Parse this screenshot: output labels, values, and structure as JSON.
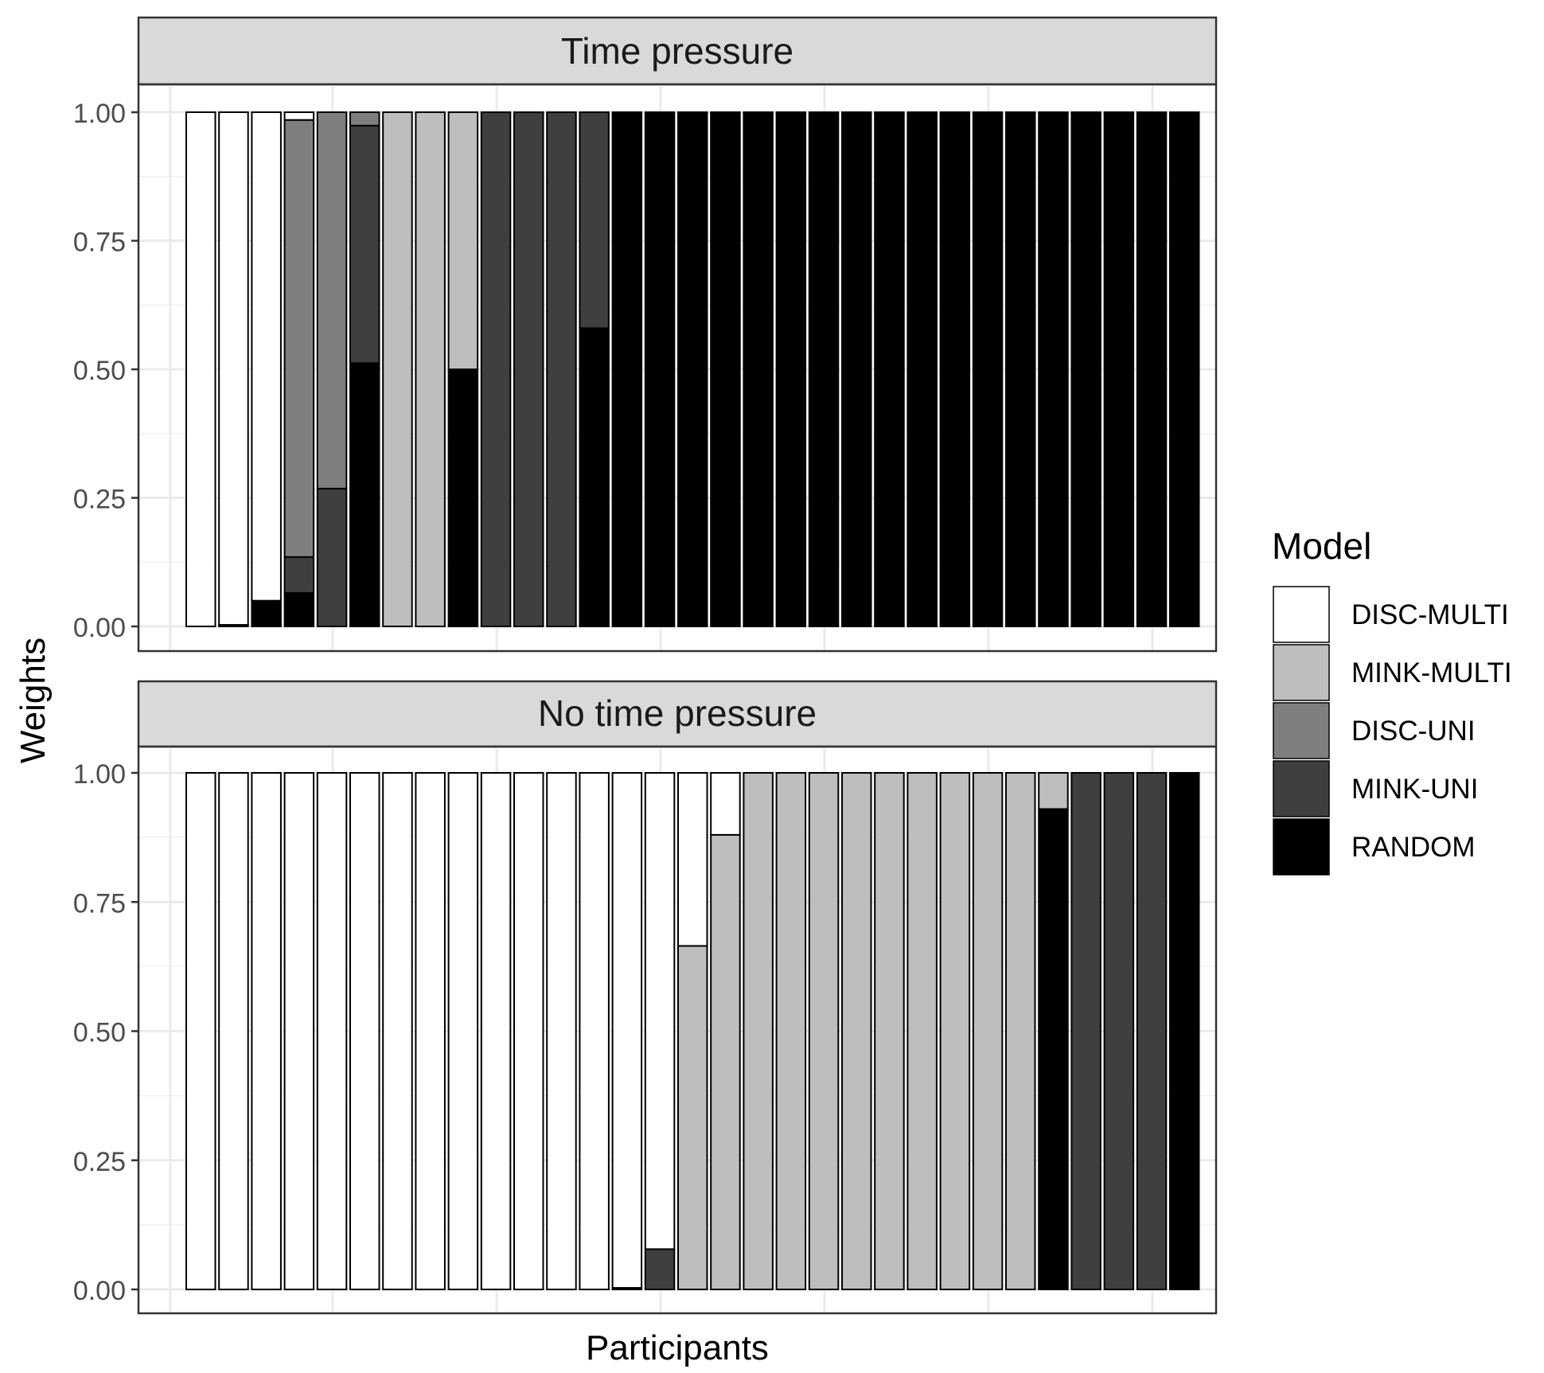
{
  "chart_data": {
    "type": "bar",
    "stacked": true,
    "xlabel": "Participants",
    "ylabel": "Weights",
    "ylim": [
      0,
      1
    ],
    "y_ticks": [
      "0.00",
      "0.25",
      "0.50",
      "0.75",
      "1.00"
    ],
    "grid": true,
    "legend": {
      "title": "Model",
      "placement": "right",
      "entries": [
        {
          "name": "DISC-MULTI",
          "color": "#ffffff"
        },
        {
          "name": "MINK-MULTI",
          "color": "#bebebe"
        },
        {
          "name": "DISC-UNI",
          "color": "#7f7f7f"
        },
        {
          "name": "MINK-UNI",
          "color": "#3f3f3f"
        },
        {
          "name": "RANDOM",
          "color": "#000000"
        }
      ]
    },
    "stack_order_bottom_to_top": [
      "RANDOM",
      "MINK-UNI",
      "DISC-UNI",
      "MINK-MULTI",
      "DISC-MULTI"
    ],
    "panels": [
      {
        "title": "Time pressure",
        "participants": [
          {
            "RANDOM": 0.0,
            "MINK-UNI": 0.0,
            "DISC-UNI": 0.0,
            "MINK-MULTI": 0.0,
            "DISC-MULTI": 1.0
          },
          {
            "RANDOM": 0.003,
            "MINK-UNI": 0.0,
            "DISC-UNI": 0.0,
            "MINK-MULTI": 0.0,
            "DISC-MULTI": 0.997
          },
          {
            "RANDOM": 0.05,
            "MINK-UNI": 0.0,
            "DISC-UNI": 0.0,
            "MINK-MULTI": 0.0,
            "DISC-MULTI": 0.95
          },
          {
            "RANDOM": 0.065,
            "MINK-UNI": 0.07,
            "DISC-UNI": 0.85,
            "MINK-MULTI": 0.0,
            "DISC-MULTI": 0.015
          },
          {
            "RANDOM": 0.0,
            "MINK-UNI": 0.268,
            "DISC-UNI": 0.732,
            "MINK-MULTI": 0.0,
            "DISC-MULTI": 0.0
          },
          {
            "RANDOM": 0.512,
            "MINK-UNI": 0.462,
            "DISC-UNI": 0.026,
            "MINK-MULTI": 0.0,
            "DISC-MULTI": 0.0
          },
          {
            "RANDOM": 0.0,
            "MINK-UNI": 0.0,
            "DISC-UNI": 0.0,
            "MINK-MULTI": 1.0,
            "DISC-MULTI": 0.0
          },
          {
            "RANDOM": 0.0,
            "MINK-UNI": 0.0,
            "DISC-UNI": 0.0,
            "MINK-MULTI": 1.0,
            "DISC-MULTI": 0.0
          },
          {
            "RANDOM": 0.5,
            "MINK-UNI": 0.0,
            "DISC-UNI": 0.0,
            "MINK-MULTI": 0.5,
            "DISC-MULTI": 0.0
          },
          {
            "RANDOM": 0.0,
            "MINK-UNI": 1.0,
            "DISC-UNI": 0.0,
            "MINK-MULTI": 0.0,
            "DISC-MULTI": 0.0
          },
          {
            "RANDOM": 0.0,
            "MINK-UNI": 1.0,
            "DISC-UNI": 0.0,
            "MINK-MULTI": 0.0,
            "DISC-MULTI": 0.0
          },
          {
            "RANDOM": 0.0,
            "MINK-UNI": 1.0,
            "DISC-UNI": 0.0,
            "MINK-MULTI": 0.0,
            "DISC-MULTI": 0.0
          },
          {
            "RANDOM": 0.58,
            "MINK-UNI": 0.42,
            "DISC-UNI": 0.0,
            "MINK-MULTI": 0.0,
            "DISC-MULTI": 0.0
          },
          {
            "RANDOM": 1.0,
            "MINK-UNI": 0.0,
            "DISC-UNI": 0.0,
            "MINK-MULTI": 0.0,
            "DISC-MULTI": 0.0
          },
          {
            "RANDOM": 1.0,
            "MINK-UNI": 0.0,
            "DISC-UNI": 0.0,
            "MINK-MULTI": 0.0,
            "DISC-MULTI": 0.0
          },
          {
            "RANDOM": 1.0,
            "MINK-UNI": 0.0,
            "DISC-UNI": 0.0,
            "MINK-MULTI": 0.0,
            "DISC-MULTI": 0.0
          },
          {
            "RANDOM": 1.0,
            "MINK-UNI": 0.0,
            "DISC-UNI": 0.0,
            "MINK-MULTI": 0.0,
            "DISC-MULTI": 0.0
          },
          {
            "RANDOM": 1.0,
            "MINK-UNI": 0.0,
            "DISC-UNI": 0.0,
            "MINK-MULTI": 0.0,
            "DISC-MULTI": 0.0
          },
          {
            "RANDOM": 1.0,
            "MINK-UNI": 0.0,
            "DISC-UNI": 0.0,
            "MINK-MULTI": 0.0,
            "DISC-MULTI": 0.0
          },
          {
            "RANDOM": 1.0,
            "MINK-UNI": 0.0,
            "DISC-UNI": 0.0,
            "MINK-MULTI": 0.0,
            "DISC-MULTI": 0.0
          },
          {
            "RANDOM": 1.0,
            "MINK-UNI": 0.0,
            "DISC-UNI": 0.0,
            "MINK-MULTI": 0.0,
            "DISC-MULTI": 0.0
          },
          {
            "RANDOM": 1.0,
            "MINK-UNI": 0.0,
            "DISC-UNI": 0.0,
            "MINK-MULTI": 0.0,
            "DISC-MULTI": 0.0
          },
          {
            "RANDOM": 1.0,
            "MINK-UNI": 0.0,
            "DISC-UNI": 0.0,
            "MINK-MULTI": 0.0,
            "DISC-MULTI": 0.0
          },
          {
            "RANDOM": 1.0,
            "MINK-UNI": 0.0,
            "DISC-UNI": 0.0,
            "MINK-MULTI": 0.0,
            "DISC-MULTI": 0.0
          },
          {
            "RANDOM": 1.0,
            "MINK-UNI": 0.0,
            "DISC-UNI": 0.0,
            "MINK-MULTI": 0.0,
            "DISC-MULTI": 0.0
          },
          {
            "RANDOM": 1.0,
            "MINK-UNI": 0.0,
            "DISC-UNI": 0.0,
            "MINK-MULTI": 0.0,
            "DISC-MULTI": 0.0
          },
          {
            "RANDOM": 1.0,
            "MINK-UNI": 0.0,
            "DISC-UNI": 0.0,
            "MINK-MULTI": 0.0,
            "DISC-MULTI": 0.0
          },
          {
            "RANDOM": 1.0,
            "MINK-UNI": 0.0,
            "DISC-UNI": 0.0,
            "MINK-MULTI": 0.0,
            "DISC-MULTI": 0.0
          },
          {
            "RANDOM": 1.0,
            "MINK-UNI": 0.0,
            "DISC-UNI": 0.0,
            "MINK-MULTI": 0.0,
            "DISC-MULTI": 0.0
          },
          {
            "RANDOM": 1.0,
            "MINK-UNI": 0.0,
            "DISC-UNI": 0.0,
            "MINK-MULTI": 0.0,
            "DISC-MULTI": 0.0
          },
          {
            "RANDOM": 1.0,
            "MINK-UNI": 0.0,
            "DISC-UNI": 0.0,
            "MINK-MULTI": 0.0,
            "DISC-MULTI": 0.0
          }
        ]
      },
      {
        "title": "No time pressure",
        "participants": [
          {
            "RANDOM": 0.0,
            "MINK-UNI": 0.0,
            "DISC-UNI": 0.0,
            "MINK-MULTI": 0.0,
            "DISC-MULTI": 1.0
          },
          {
            "RANDOM": 0.0,
            "MINK-UNI": 0.0,
            "DISC-UNI": 0.0,
            "MINK-MULTI": 0.0,
            "DISC-MULTI": 1.0
          },
          {
            "RANDOM": 0.0,
            "MINK-UNI": 0.0,
            "DISC-UNI": 0.0,
            "MINK-MULTI": 0.0,
            "DISC-MULTI": 1.0
          },
          {
            "RANDOM": 0.0,
            "MINK-UNI": 0.0,
            "DISC-UNI": 0.0,
            "MINK-MULTI": 0.0,
            "DISC-MULTI": 1.0
          },
          {
            "RANDOM": 0.0,
            "MINK-UNI": 0.0,
            "DISC-UNI": 0.0,
            "MINK-MULTI": 0.0,
            "DISC-MULTI": 1.0
          },
          {
            "RANDOM": 0.0,
            "MINK-UNI": 0.0,
            "DISC-UNI": 0.0,
            "MINK-MULTI": 0.0,
            "DISC-MULTI": 1.0
          },
          {
            "RANDOM": 0.0,
            "MINK-UNI": 0.0,
            "DISC-UNI": 0.0,
            "MINK-MULTI": 0.0,
            "DISC-MULTI": 1.0
          },
          {
            "RANDOM": 0.0,
            "MINK-UNI": 0.0,
            "DISC-UNI": 0.0,
            "MINK-MULTI": 0.0,
            "DISC-MULTI": 1.0
          },
          {
            "RANDOM": 0.0,
            "MINK-UNI": 0.0,
            "DISC-UNI": 0.0,
            "MINK-MULTI": 0.0,
            "DISC-MULTI": 1.0
          },
          {
            "RANDOM": 0.0,
            "MINK-UNI": 0.0,
            "DISC-UNI": 0.0,
            "MINK-MULTI": 0.0,
            "DISC-MULTI": 1.0
          },
          {
            "RANDOM": 0.0,
            "MINK-UNI": 0.0,
            "DISC-UNI": 0.0,
            "MINK-MULTI": 0.0,
            "DISC-MULTI": 1.0
          },
          {
            "RANDOM": 0.0,
            "MINK-UNI": 0.0,
            "DISC-UNI": 0.0,
            "MINK-MULTI": 0.0,
            "DISC-MULTI": 1.0
          },
          {
            "RANDOM": 0.0,
            "MINK-UNI": 0.0,
            "DISC-UNI": 0.0,
            "MINK-MULTI": 0.0,
            "DISC-MULTI": 1.0
          },
          {
            "RANDOM": 0.003,
            "MINK-UNI": 0.0,
            "DISC-UNI": 0.0,
            "MINK-MULTI": 0.0,
            "DISC-MULTI": 0.997
          },
          {
            "RANDOM": 0.0,
            "MINK-UNI": 0.078,
            "DISC-UNI": 0.0,
            "MINK-MULTI": 0.0,
            "DISC-MULTI": 0.922
          },
          {
            "RANDOM": 0.0,
            "MINK-UNI": 0.0,
            "DISC-UNI": 0.0,
            "MINK-MULTI": 0.665,
            "DISC-MULTI": 0.335
          },
          {
            "RANDOM": 0.0,
            "MINK-UNI": 0.0,
            "DISC-UNI": 0.0,
            "MINK-MULTI": 0.88,
            "DISC-MULTI": 0.12
          },
          {
            "RANDOM": 0.0,
            "MINK-UNI": 0.0,
            "DISC-UNI": 0.0,
            "MINK-MULTI": 1.0,
            "DISC-MULTI": 0.0
          },
          {
            "RANDOM": 0.0,
            "MINK-UNI": 0.0,
            "DISC-UNI": 0.0,
            "MINK-MULTI": 1.0,
            "DISC-MULTI": 0.0
          },
          {
            "RANDOM": 0.0,
            "MINK-UNI": 0.0,
            "DISC-UNI": 0.0,
            "MINK-MULTI": 1.0,
            "DISC-MULTI": 0.0
          },
          {
            "RANDOM": 0.0,
            "MINK-UNI": 0.0,
            "DISC-UNI": 0.0,
            "MINK-MULTI": 1.0,
            "DISC-MULTI": 0.0
          },
          {
            "RANDOM": 0.0,
            "MINK-UNI": 0.0,
            "DISC-UNI": 0.0,
            "MINK-MULTI": 1.0,
            "DISC-MULTI": 0.0
          },
          {
            "RANDOM": 0.0,
            "MINK-UNI": 0.0,
            "DISC-UNI": 0.0,
            "MINK-MULTI": 1.0,
            "DISC-MULTI": 0.0
          },
          {
            "RANDOM": 0.0,
            "MINK-UNI": 0.0,
            "DISC-UNI": 0.0,
            "MINK-MULTI": 1.0,
            "DISC-MULTI": 0.0
          },
          {
            "RANDOM": 0.0,
            "MINK-UNI": 0.0,
            "DISC-UNI": 0.0,
            "MINK-MULTI": 1.0,
            "DISC-MULTI": 0.0
          },
          {
            "RANDOM": 0.0,
            "MINK-UNI": 0.0,
            "DISC-UNI": 0.0,
            "MINK-MULTI": 1.0,
            "DISC-MULTI": 0.0
          },
          {
            "RANDOM": 0.93,
            "MINK-UNI": 0.0,
            "DISC-UNI": 0.0,
            "MINK-MULTI": 0.07,
            "DISC-MULTI": 0.0
          },
          {
            "RANDOM": 0.0,
            "MINK-UNI": 1.0,
            "DISC-UNI": 0.0,
            "MINK-MULTI": 0.0,
            "DISC-MULTI": 0.0
          },
          {
            "RANDOM": 0.0,
            "MINK-UNI": 1.0,
            "DISC-UNI": 0.0,
            "MINK-MULTI": 0.0,
            "DISC-MULTI": 0.0
          },
          {
            "RANDOM": 0.0,
            "MINK-UNI": 1.0,
            "DISC-UNI": 0.0,
            "MINK-MULTI": 0.0,
            "DISC-MULTI": 0.0
          },
          {
            "RANDOM": 1.0,
            "MINK-UNI": 0.0,
            "DISC-UNI": 0.0,
            "MINK-MULTI": 0.0,
            "DISC-MULTI": 0.0
          }
        ]
      }
    ]
  }
}
